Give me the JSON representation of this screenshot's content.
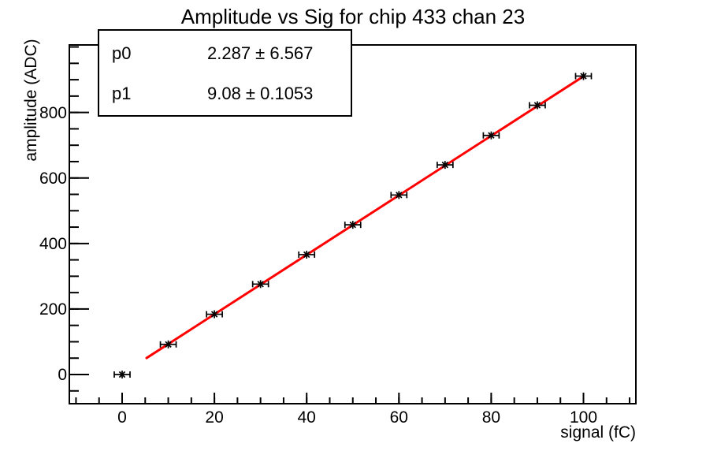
{
  "title": "Amplitude vs Sig for chip 433 chan 23",
  "stats_box": {
    "rows": [
      {
        "param": "p0",
        "value": "2.287 ± 6.567"
      },
      {
        "param": "p1",
        "value": "9.08 ± 0.1053"
      }
    ]
  },
  "axes": {
    "x": {
      "title": "signal (fC)",
      "tick_labels": [
        "0",
        "20",
        "40",
        "60",
        "80",
        "100"
      ],
      "tick_values": [
        0,
        20,
        40,
        60,
        80,
        100
      ],
      "minor_tick_step": 5,
      "range": [
        -11.5,
        111.5
      ]
    },
    "y": {
      "title": "amplitude (ADC)",
      "tick_labels": [
        "0",
        "200",
        "400",
        "600",
        "800"
      ],
      "tick_values": [
        0,
        200,
        400,
        600,
        800
      ],
      "minor_tick_step": 50,
      "range": [
        -90,
        1005
      ]
    }
  },
  "chart_data": {
    "type": "scatter",
    "title": "Amplitude vs Sig for chip 433 chan 23",
    "xlabel": "signal (fC)",
    "ylabel": "amplitude (ADC)",
    "x": [
      0,
      10,
      20,
      30,
      40,
      50,
      60,
      70,
      80,
      90,
      100
    ],
    "y": [
      0,
      92,
      184,
      276,
      366,
      457,
      548,
      640,
      730,
      822,
      911
    ],
    "x_error": 1.5,
    "marker": "asterisk-with-error-bars",
    "marker_color": "#000000",
    "fit_line": {
      "p0": 2.287,
      "p0_err": 6.567,
      "p1": 9.08,
      "p1_err": 0.1053,
      "x_range": [
        5.3,
        100
      ],
      "color": "#ff0000"
    },
    "xlim": [
      -11.5,
      111.5
    ],
    "ylim": [
      -90,
      1005
    ],
    "grid": false,
    "legend_position": "stats-box-top-left"
  },
  "colors": {
    "axis": "#000000",
    "fit_line": "#ff0000",
    "text": "#000000",
    "background": "#ffffff"
  }
}
